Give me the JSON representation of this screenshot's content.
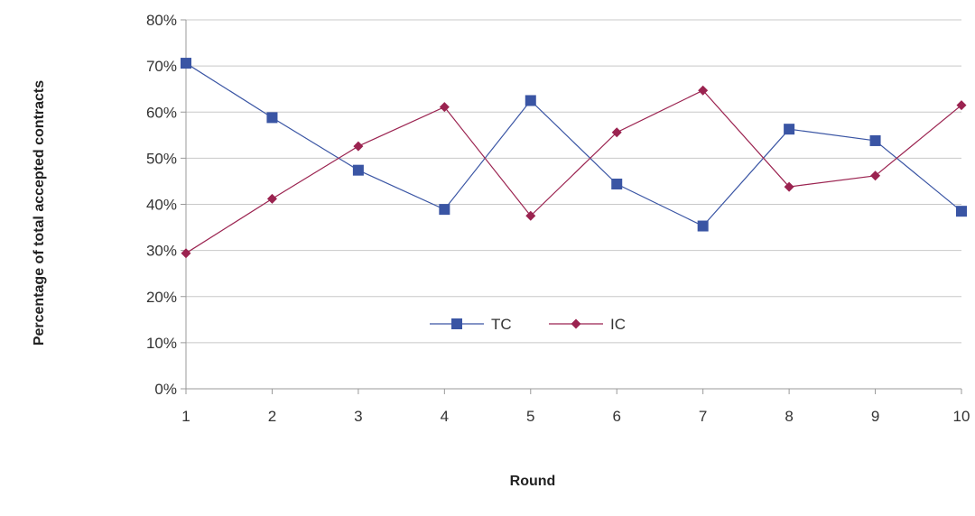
{
  "chart_data": {
    "type": "line",
    "title": "",
    "xlabel": "Round",
    "ylabel": "Percentage of total accepted contracts",
    "categories": [
      "1",
      "2",
      "3",
      "4",
      "5",
      "6",
      "7",
      "8",
      "9",
      "10"
    ],
    "ylim": [
      0,
      80
    ],
    "y_ticks": [
      0,
      10,
      20,
      30,
      40,
      50,
      60,
      70,
      80
    ],
    "y_tick_labels": [
      "0%",
      "10%",
      "20%",
      "30%",
      "40%",
      "50%",
      "60%",
      "70%",
      "80%"
    ],
    "grid": true,
    "legend_position": "center",
    "series": [
      {
        "name": "TC",
        "color": "#3a55a4",
        "marker": "square",
        "values": [
          70.6,
          58.8,
          47.4,
          38.9,
          62.5,
          44.4,
          35.3,
          56.3,
          53.8,
          38.5
        ]
      },
      {
        "name": "IC",
        "color": "#9b2350",
        "marker": "diamond",
        "values": [
          29.4,
          41.2,
          52.6,
          61.1,
          37.5,
          55.6,
          64.7,
          43.8,
          46.2,
          61.5
        ]
      }
    ]
  }
}
